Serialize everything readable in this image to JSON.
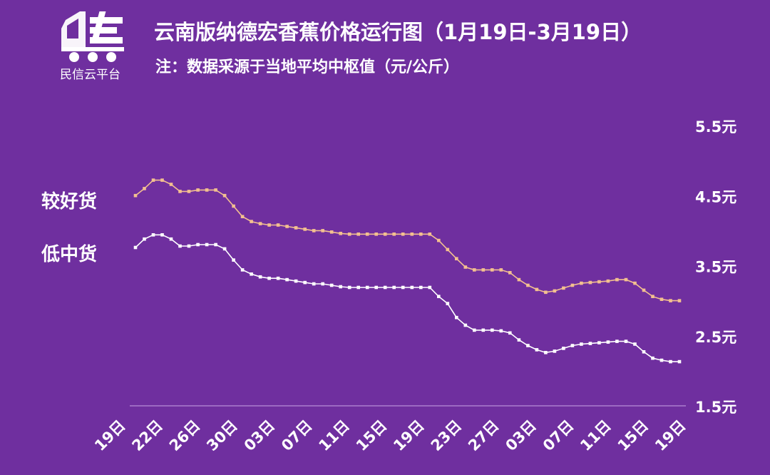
{
  "brand": {
    "name": "民信云平台",
    "logo_icon": "truck-icon"
  },
  "header": {
    "title": "云南版纳德宏香蕉价格运行图（1月19日-3月19日）",
    "subtitle": "注：数据采源于当地平均中枢值（元/公斤）"
  },
  "colors": {
    "background": "#6f2f9f",
    "good_line": "#f3c08f",
    "low_line": "#ffffff",
    "axis": "#c9a6e6"
  },
  "chart_data": {
    "type": "line",
    "x_tick_labels": [
      "19日",
      "22日",
      "26日",
      "30日",
      "03日",
      "07日",
      "11日",
      "15日",
      "19日",
      "23日",
      "27日",
      "03日",
      "07日",
      "11日",
      "15日",
      "19日"
    ],
    "y_tick_labels": [
      "5.5元",
      "4.5元",
      "3.5元",
      "2.5元",
      "1.5元"
    ],
    "ylim": [
      1.5,
      5.5
    ],
    "yticks": [
      5.5,
      4.5,
      3.5,
      2.5,
      1.5
    ],
    "grid": false,
    "legend": "left",
    "series": [
      {
        "name": "较好货",
        "values": [
          4.5,
          4.6,
          4.72,
          4.72,
          4.66,
          4.56,
          4.56,
          4.58,
          4.58,
          4.58,
          4.5,
          4.35,
          4.2,
          4.13,
          4.1,
          4.08,
          4.08,
          4.06,
          4.04,
          4.02,
          4.0,
          4.0,
          3.98,
          3.96,
          3.95,
          3.95,
          3.95,
          3.95,
          3.95,
          3.95,
          3.95,
          3.95,
          3.95,
          3.95,
          3.86,
          3.73,
          3.6,
          3.48,
          3.44,
          3.44,
          3.44,
          3.44,
          3.4,
          3.3,
          3.22,
          3.16,
          3.12,
          3.14,
          3.18,
          3.22,
          3.25,
          3.26,
          3.27,
          3.28,
          3.3,
          3.3,
          3.25,
          3.15,
          3.06,
          3.02,
          3.0,
          3.0
        ]
      },
      {
        "name": "低中货",
        "values": [
          3.76,
          3.88,
          3.94,
          3.94,
          3.88,
          3.78,
          3.78,
          3.8,
          3.8,
          3.8,
          3.74,
          3.58,
          3.44,
          3.38,
          3.34,
          3.32,
          3.32,
          3.3,
          3.28,
          3.26,
          3.24,
          3.24,
          3.22,
          3.2,
          3.19,
          3.19,
          3.19,
          3.19,
          3.19,
          3.19,
          3.19,
          3.19,
          3.19,
          3.19,
          3.06,
          2.96,
          2.76,
          2.65,
          2.58,
          2.58,
          2.58,
          2.57,
          2.54,
          2.44,
          2.36,
          2.3,
          2.26,
          2.28,
          2.32,
          2.36,
          2.38,
          2.39,
          2.4,
          2.41,
          2.42,
          2.42,
          2.38,
          2.27,
          2.18,
          2.15,
          2.13,
          2.13
        ]
      }
    ]
  }
}
